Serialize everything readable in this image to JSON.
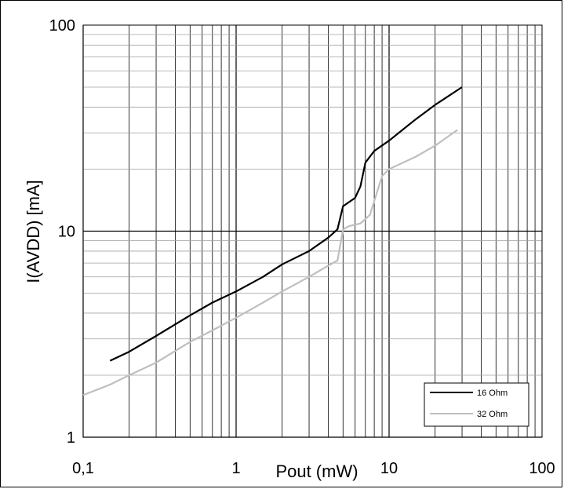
{
  "chart_data": {
    "type": "line",
    "title": "",
    "xlabel": "Pout (mW)",
    "ylabel": "I(AVDD) [mA]",
    "x_scale": "log",
    "y_scale": "log",
    "xlim": [
      0.1,
      100
    ],
    "ylim": [
      1,
      100
    ],
    "x_tick_labels": [
      "0,1",
      "1",
      "10",
      "100"
    ],
    "y_tick_labels": [
      "1",
      "10",
      "100"
    ],
    "grid": true,
    "legend_position": "bottom-right",
    "series": [
      {
        "name": "16 Ohm",
        "color": "#000000",
        "x": [
          0.15,
          0.2,
          0.3,
          0.5,
          0.7,
          1.0,
          1.5,
          2.0,
          3.0,
          4.0,
          4.6,
          5.0,
          5.3,
          6.0,
          6.5,
          7.0,
          8.0,
          10.0,
          15.0,
          20.0,
          30.0
        ],
        "y": [
          2.35,
          2.6,
          3.1,
          3.9,
          4.5,
          5.1,
          6.0,
          6.9,
          8.0,
          9.3,
          10.2,
          13.2,
          13.6,
          14.5,
          16.5,
          21.5,
          24.5,
          27.5,
          35.0,
          41.0,
          50.0
        ]
      },
      {
        "name": "32 Ohm",
        "color": "#bfbfbf",
        "x": [
          0.1,
          0.15,
          0.2,
          0.3,
          0.5,
          0.7,
          1.0,
          1.5,
          2.0,
          3.0,
          4.0,
          4.6,
          5.0,
          5.5,
          6.5,
          7.5,
          8.0,
          9.0,
          10.0,
          15.0,
          20.0,
          28.0
        ],
        "y": [
          1.6,
          1.8,
          2.0,
          2.3,
          2.9,
          3.3,
          3.8,
          4.5,
          5.1,
          6.0,
          6.8,
          7.2,
          10.2,
          10.6,
          10.9,
          12.0,
          14.0,
          18.5,
          20.0,
          23.0,
          26.0,
          31.0
        ]
      }
    ]
  }
}
